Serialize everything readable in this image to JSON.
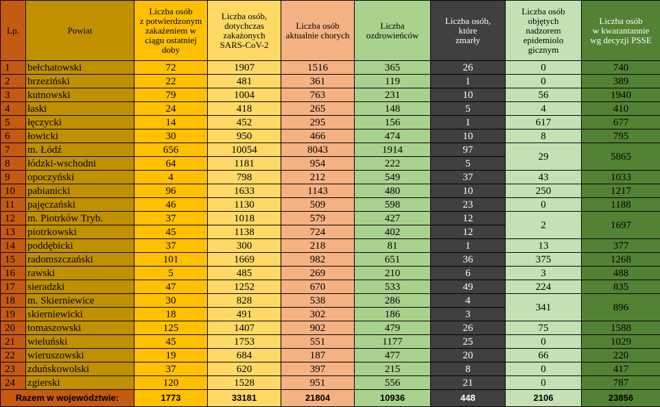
{
  "headers": {
    "lp": "Lp.",
    "powiat": "Powiat",
    "infected_day": [
      "Liczba osób",
      "z potwierdzonym",
      "zakażeniem w",
      "ciągu ostatniej",
      "doby"
    ],
    "total_infected": [
      "Liczba osób,",
      "dotychczas",
      "zakażonych",
      "SARS-CoV-2"
    ],
    "currently_sick": [
      "Liczba osób",
      "aktualnie chorych"
    ],
    "recovered": [
      "Liczba",
      "ozdrowieńców"
    ],
    "deceased": [
      "Liczba osób,",
      "które",
      "zmarły"
    ],
    "supervision": [
      "Liczba osób",
      "objętych",
      "nadzorem",
      "epidemiolo",
      "gicznym"
    ],
    "quarantine": [
      "Liczba osób",
      "w kwarantannie",
      "wg decyzji PSSE"
    ]
  },
  "rows": [
    {
      "lp": "1",
      "name": "bełchatowski",
      "inf": "72",
      "tot": "1907",
      "sick": "1516",
      "rec": "365",
      "dead": "26",
      "sup": "0",
      "quar": "740"
    },
    {
      "lp": "2",
      "name": "brzeziński",
      "inf": "22",
      "tot": "481",
      "sick": "361",
      "rec": "119",
      "dead": "1",
      "sup": "0",
      "quar": "389"
    },
    {
      "lp": "3",
      "name": "kutnowski",
      "inf": "79",
      "tot": "1004",
      "sick": "763",
      "rec": "231",
      "dead": "10",
      "sup": "56",
      "quar": "1940"
    },
    {
      "lp": "4",
      "name": "łaski",
      "inf": "24",
      "tot": "418",
      "sick": "265",
      "rec": "148",
      "dead": "5",
      "sup": "4",
      "quar": "410"
    },
    {
      "lp": "5",
      "name": "łęczycki",
      "inf": "14",
      "tot": "452",
      "sick": "295",
      "rec": "156",
      "dead": "1",
      "sup": "617",
      "quar": "677"
    },
    {
      "lp": "6",
      "name": "łowicki",
      "inf": "30",
      "tot": "950",
      "sick": "466",
      "rec": "474",
      "dead": "10",
      "sup": "8",
      "quar": "795"
    },
    {
      "lp": "7",
      "name": "m. Łódź",
      "inf": "656",
      "tot": "10054",
      "sick": "8043",
      "rec": "1914",
      "dead": "97",
      "sup": "29",
      "quar": "5865"
    },
    {
      "lp": "8",
      "name": "łódzki-wschodni",
      "inf": "64",
      "tot": "1181",
      "sick": "954",
      "rec": "222",
      "dead": "5"
    },
    {
      "lp": "9",
      "name": "opoczyński",
      "inf": "4",
      "tot": "798",
      "sick": "212",
      "rec": "549",
      "dead": "37",
      "sup": "43",
      "quar": "1033"
    },
    {
      "lp": "10",
      "name": "pabianicki",
      "inf": "96",
      "tot": "1633",
      "sick": "1143",
      "rec": "480",
      "dead": "10",
      "sup": "250",
      "quar": "1217"
    },
    {
      "lp": "11",
      "name": "pajęczański",
      "inf": "46",
      "tot": "1130",
      "sick": "509",
      "rec": "598",
      "dead": "23",
      "sup": "0",
      "quar": "1188"
    },
    {
      "lp": "12",
      "name": "m. Piotrków Tryb.",
      "inf": "37",
      "tot": "1018",
      "sick": "579",
      "rec": "427",
      "dead": "12",
      "sup": "2",
      "quar": "1697"
    },
    {
      "lp": "13",
      "name": "piotrkowski",
      "inf": "45",
      "tot": "1138",
      "sick": "724",
      "rec": "402",
      "dead": "12"
    },
    {
      "lp": "14",
      "name": "poddębicki",
      "inf": "37",
      "tot": "300",
      "sick": "218",
      "rec": "81",
      "dead": "1",
      "sup": "13",
      "quar": "377"
    },
    {
      "lp": "15",
      "name": "radomszczański",
      "inf": "101",
      "tot": "1669",
      "sick": "982",
      "rec": "651",
      "dead": "36",
      "sup": "375",
      "quar": "1268"
    },
    {
      "lp": "16",
      "name": "rawski",
      "inf": "5",
      "tot": "485",
      "sick": "269",
      "rec": "210",
      "dead": "6",
      "sup": "3",
      "quar": "488"
    },
    {
      "lp": "17",
      "name": "sieradzki",
      "inf": "47",
      "tot": "1252",
      "sick": "670",
      "rec": "533",
      "dead": "49",
      "sup": "224",
      "quar": "835"
    },
    {
      "lp": "18",
      "name": "m. Skierniewice",
      "inf": "30",
      "tot": "828",
      "sick": "538",
      "rec": "286",
      "dead": "4",
      "sup": "341",
      "quar": "896"
    },
    {
      "lp": "19",
      "name": "skierniewicki",
      "inf": "18",
      "tot": "491",
      "sick": "302",
      "rec": "186",
      "dead": "3"
    },
    {
      "lp": "20",
      "name": "tomaszowski",
      "inf": "125",
      "tot": "1407",
      "sick": "902",
      "rec": "479",
      "dead": "26",
      "sup": "75",
      "quar": "1588"
    },
    {
      "lp": "21",
      "name": "wieluński",
      "inf": "45",
      "tot": "1753",
      "sick": "551",
      "rec": "1177",
      "dead": "25",
      "sup": "0",
      "quar": "1029"
    },
    {
      "lp": "22",
      "name": "wieruszowski",
      "inf": "19",
      "tot": "684",
      "sick": "187",
      "rec": "477",
      "dead": "20",
      "sup": "66",
      "quar": "220"
    },
    {
      "lp": "23",
      "name": "zduńskowolski",
      "inf": "37",
      "tot": "620",
      "sick": "397",
      "rec": "215",
      "dead": "8",
      "sup": "0",
      "quar": "417"
    },
    {
      "lp": "24",
      "name": "zgierski",
      "inf": "120",
      "tot": "1528",
      "sick": "951",
      "rec": "556",
      "dead": "21",
      "sup": "0",
      "quar": "787"
    }
  ],
  "totals": {
    "label": "Razem w województwie:",
    "inf": "1773",
    "tot": "33181",
    "sick": "21804",
    "rec": "10936",
    "dead": "448",
    "sup": "2106",
    "quar": "23856"
  },
  "colors": {
    "lp": "#c55a11",
    "powiat": "#c09000",
    "infected_day": "#ffc000",
    "total_infected": "#ffd966",
    "currently_sick": "#f4b183",
    "recovered": "#a9d18e",
    "deceased": "#404040",
    "supervision": "#c5e0b4",
    "quarantine": "#548235"
  }
}
